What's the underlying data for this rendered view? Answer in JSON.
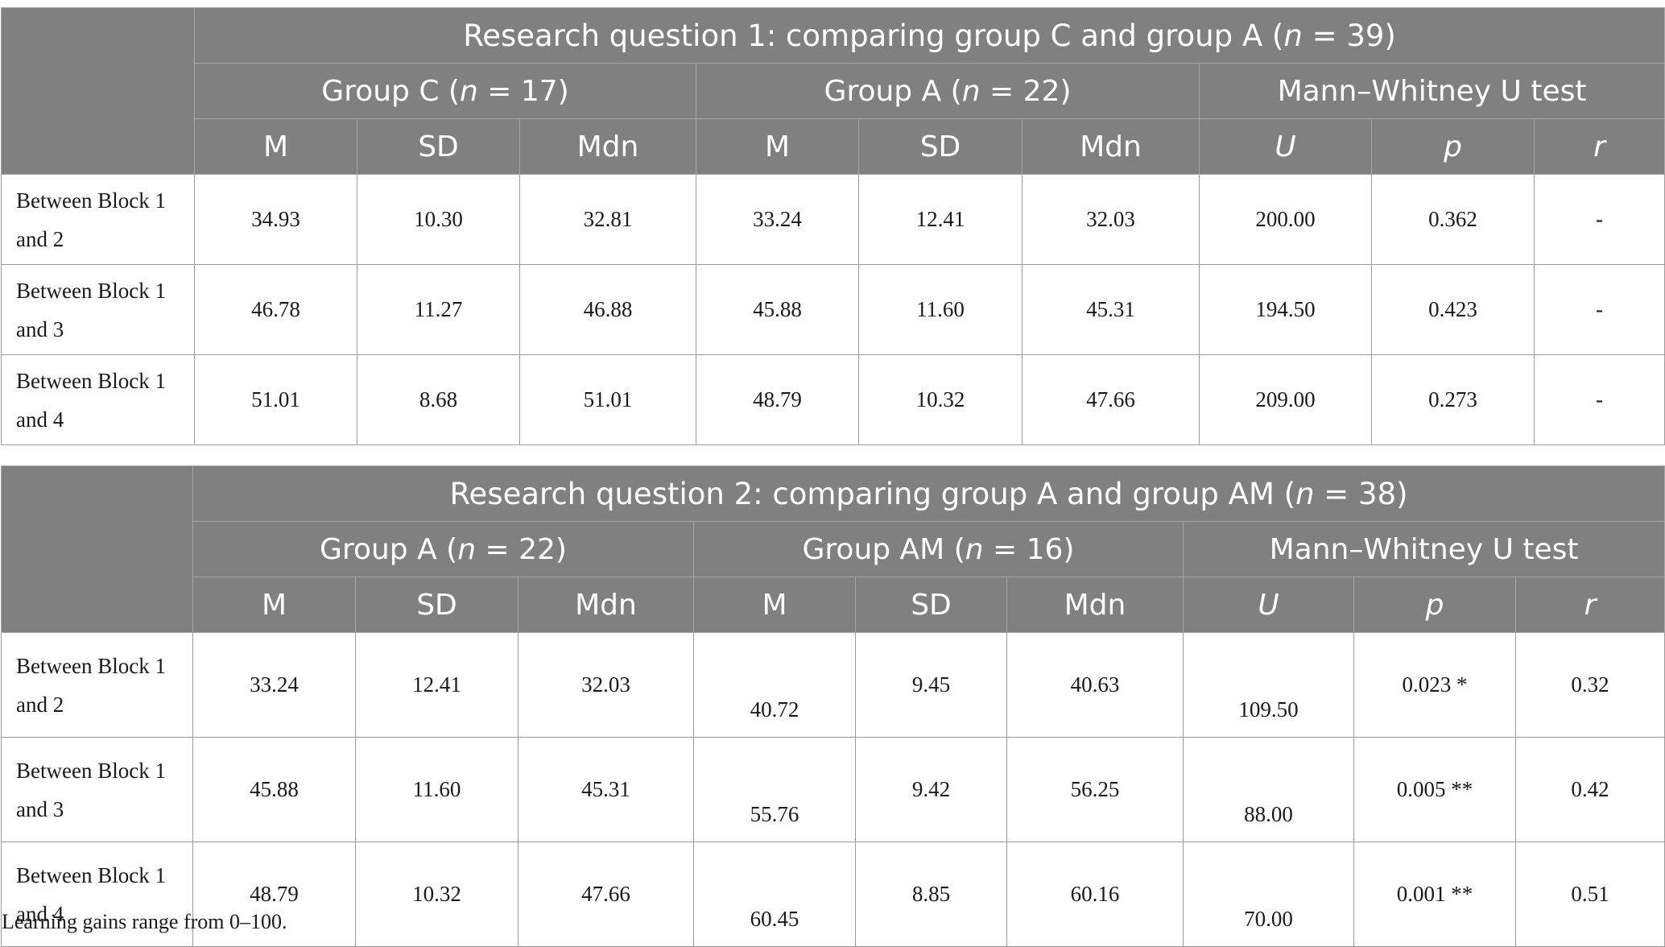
{
  "tables": [
    {
      "title_prefix": "Research question 1: comparing group C and group A (",
      "title_n": "n",
      "title_suffix": " = 39)",
      "groups": [
        {
          "prefix": "Group C (",
          "n": "n",
          "suffix": " = 17)"
        },
        {
          "prefix": "Group A (",
          "n": "n",
          "suffix": " = 22)"
        },
        {
          "prefix": "Mann–Whitney U test",
          "n": "",
          "suffix": ""
        }
      ],
      "columns": [
        "M",
        "SD",
        "Mdn",
        "M",
        "SD",
        "Mdn",
        "U",
        "p",
        "r"
      ],
      "rows": [
        {
          "label_line1": "Between Block 1",
          "label_line2": "and 2",
          "cells": [
            "34.93",
            "10.30",
            "32.81",
            "33.24",
            "12.41",
            "32.03",
            "200.00",
            "0.362",
            "-"
          ]
        },
        {
          "label_line1": "Between Block 1",
          "label_line2": "and 3",
          "cells": [
            "46.78",
            "11.27",
            "46.88",
            "45.88",
            "11.60",
            "45.31",
            "194.50",
            "0.423",
            "-"
          ]
        },
        {
          "label_line1": "Between Block 1",
          "label_line2": "and 4",
          "cells": [
            "51.01",
            "8.68",
            "51.01",
            "48.79",
            "10.32",
            "47.66",
            "209.00",
            "0.273",
            "-"
          ]
        }
      ]
    },
    {
      "title_prefix": "Research question 2: comparing group A and group AM (",
      "title_n": "n",
      "title_suffix": " = 38)",
      "groups": [
        {
          "prefix": "Group A (",
          "n": "n",
          "suffix": " = 22)"
        },
        {
          "prefix": "Group AM (",
          "n": "n",
          "suffix": " = 16)"
        },
        {
          "prefix": "Mann–Whitney U test",
          "n": "",
          "suffix": ""
        }
      ],
      "columns": [
        "M",
        "SD",
        "Mdn",
        "M",
        "SD",
        "Mdn",
        "U",
        "p",
        "r"
      ],
      "rows": [
        {
          "label_line1": "Between Block 1",
          "label_line2": "and 2",
          "cells": [
            "33.24",
            "12.41",
            "32.03",
            "40.72",
            "9.45",
            "40.63",
            "109.50",
            "0.023 *",
            "0.32"
          ]
        },
        {
          "label_line1": "Between Block 1",
          "label_line2": "and 3",
          "cells": [
            "45.88",
            "11.60",
            "45.31",
            "55.76",
            "9.42",
            "56.25",
            "88.00",
            "0.005 **",
            "0.42"
          ]
        },
        {
          "label_line1": "Between Block 1",
          "label_line2": "and 4",
          "cells": [
            "48.79",
            "10.32",
            "47.66",
            "60.45",
            "8.85",
            "60.16",
            "70.00",
            "0.001 **",
            "0.51"
          ]
        }
      ]
    }
  ],
  "footnote": "Learning gains range from 0–100."
}
